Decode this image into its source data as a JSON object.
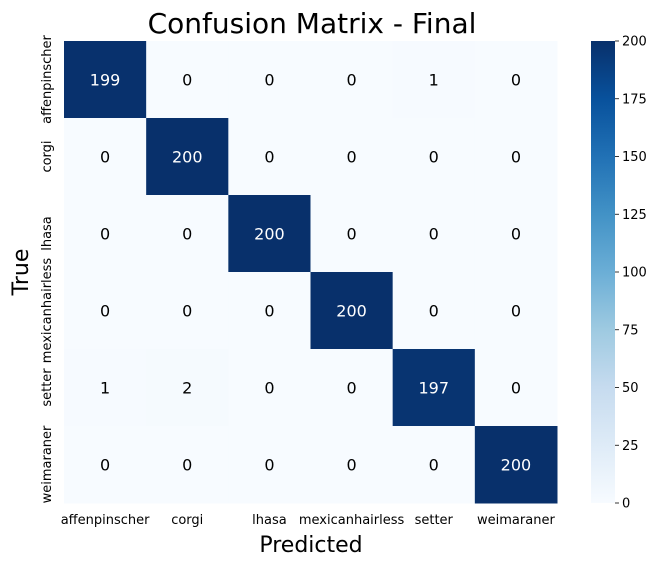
{
  "chart_data": {
    "type": "heatmap",
    "title": "Confusion Matrix - Final",
    "xlabel": "Predicted",
    "ylabel": "True",
    "x_categories": [
      "affenpinscher",
      "corgi",
      "lhasa",
      "mexicanhairless",
      "setter",
      "weimaraner"
    ],
    "y_categories": [
      "affenpinscher",
      "corgi",
      "lhasa",
      "mexicanhairless",
      "setter",
      "weimaraner"
    ],
    "values": [
      [
        199,
        0,
        0,
        0,
        1,
        0
      ],
      [
        0,
        200,
        0,
        0,
        0,
        0
      ],
      [
        0,
        0,
        200,
        0,
        0,
        0
      ],
      [
        0,
        0,
        0,
        200,
        0,
        0
      ],
      [
        1,
        2,
        0,
        0,
        197,
        0
      ],
      [
        0,
        0,
        0,
        0,
        0,
        200
      ]
    ],
    "colorbar": {
      "range": [
        0,
        200
      ],
      "ticks": [
        "0",
        "25",
        "50",
        "75",
        "100",
        "125",
        "150",
        "175",
        "200"
      ],
      "colormap": "Blues"
    },
    "colors": {
      "low": "#f7fbff",
      "high": "#08306b",
      "text_on_dark": "#ffffff",
      "text_on_light": "#000000"
    }
  }
}
